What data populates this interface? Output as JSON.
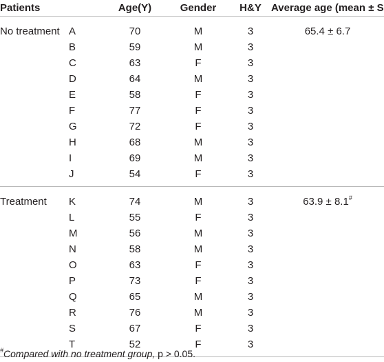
{
  "headers": {
    "patients": "Patients",
    "age": "Age(Y)",
    "gender": "Gender",
    "hy": "H&Y",
    "avg": "Average age (mean ± SD)"
  },
  "groups": [
    {
      "label": "No treatment",
      "average": "65.4 ± 6.7",
      "average_mark": "",
      "rows": [
        {
          "id": "A",
          "age": "70",
          "gender": "M",
          "hy": "3"
        },
        {
          "id": "B",
          "age": "59",
          "gender": "M",
          "hy": "3"
        },
        {
          "id": "C",
          "age": "63",
          "gender": "F",
          "hy": "3"
        },
        {
          "id": "D",
          "age": "64",
          "gender": "M",
          "hy": "3"
        },
        {
          "id": "E",
          "age": "58",
          "gender": "F",
          "hy": "3"
        },
        {
          "id": "F",
          "age": "77",
          "gender": "F",
          "hy": "3"
        },
        {
          "id": "G",
          "age": "72",
          "gender": "F",
          "hy": "3"
        },
        {
          "id": "H",
          "age": "68",
          "gender": "M",
          "hy": "3"
        },
        {
          "id": "I",
          "age": "69",
          "gender": "M",
          "hy": "3"
        },
        {
          "id": "J",
          "age": "54",
          "gender": "F",
          "hy": "3"
        }
      ]
    },
    {
      "label": "Treatment",
      "average": "63.9 ± 8.1",
      "average_mark": "#",
      "rows": [
        {
          "id": "K",
          "age": "74",
          "gender": "M",
          "hy": "3"
        },
        {
          "id": "L",
          "age": "55",
          "gender": "F",
          "hy": "3"
        },
        {
          "id": "M",
          "age": "56",
          "gender": "M",
          "hy": "3"
        },
        {
          "id": "N",
          "age": "58",
          "gender": "M",
          "hy": "3"
        },
        {
          "id": "O",
          "age": "63",
          "gender": "F",
          "hy": "3"
        },
        {
          "id": "P",
          "age": "73",
          "gender": "F",
          "hy": "3"
        },
        {
          "id": "Q",
          "age": "65",
          "gender": "M",
          "hy": "3"
        },
        {
          "id": "R",
          "age": "76",
          "gender": "M",
          "hy": "3"
        },
        {
          "id": "S",
          "age": "67",
          "gender": "F",
          "hy": "3"
        },
        {
          "id": "T",
          "age": "52",
          "gender": "F",
          "hy": "3"
        }
      ]
    }
  ],
  "footnote": {
    "mark": "#",
    "text": "Compared with no treatment group, ",
    "p": "p > 0.05."
  }
}
